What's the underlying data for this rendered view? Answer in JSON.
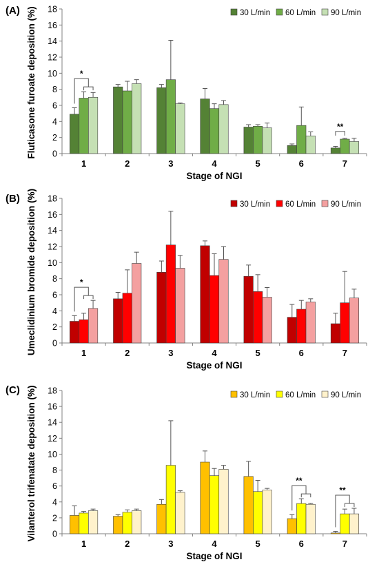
{
  "chart_data": [
    {
      "type": "bar",
      "panel_label": "(A)",
      "xlabel": "Stage of NGI",
      "ylabel": "Fluticasone furoate deposition (%)",
      "ylim": [
        0,
        18
      ],
      "yticks": [
        0,
        2,
        4,
        6,
        8,
        10,
        12,
        14,
        16,
        18
      ],
      "categories": [
        "1",
        "2",
        "3",
        "4",
        "5",
        "6",
        "7"
      ],
      "legend_position": "top-right",
      "grid": false,
      "series": [
        {
          "name": "30 L/min",
          "color": "#548235",
          "values": [
            4.9,
            8.3,
            8.2,
            6.8,
            3.3,
            1.0,
            0.7
          ],
          "errors": [
            0.8,
            0.3,
            0.4,
            1.3,
            0.3,
            0.2,
            0.2
          ]
        },
        {
          "name": "60 L/min",
          "color": "#70AD47",
          "values": [
            6.9,
            7.8,
            9.2,
            5.6,
            3.4,
            3.5,
            1.8
          ],
          "errors": [
            0.8,
            1.2,
            4.9,
            0.6,
            0.2,
            2.3,
            0.1
          ]
        },
        {
          "name": "90 L/min",
          "color": "#C5E0B4",
          "values": [
            7.0,
            8.7,
            6.2,
            6.1,
            3.2,
            2.2,
            1.5
          ],
          "errors": [
            0.6,
            0.5,
            0.1,
            0.5,
            0.6,
            0.5,
            0.4
          ]
        }
      ],
      "annotations": [
        {
          "text": "*",
          "category": "1",
          "span": "30–60 and 30–90 L/min"
        },
        {
          "text": "**",
          "category": "7",
          "span": "30–60 L/min"
        }
      ]
    },
    {
      "type": "bar",
      "panel_label": "(B)",
      "xlabel": "Stage of NGI",
      "ylabel": "Umeclidinium bromide deposition (%)",
      "ylim": [
        0,
        18
      ],
      "yticks": [
        0,
        2,
        4,
        6,
        8,
        10,
        12,
        14,
        16,
        18
      ],
      "categories": [
        "1",
        "2",
        "3",
        "4",
        "5",
        "6",
        "7"
      ],
      "legend_position": "top-right",
      "grid": false,
      "series": [
        {
          "name": "30 L/min",
          "color": "#C00000",
          "values": [
            2.7,
            5.5,
            8.8,
            12.1,
            8.3,
            3.2,
            2.4
          ],
          "errors": [
            0.7,
            0.8,
            1.4,
            0.6,
            1.4,
            1.6,
            1.3
          ]
        },
        {
          "name": "60 L/min",
          "color": "#FF0000",
          "values": [
            2.9,
            6.2,
            12.2,
            8.4,
            6.4,
            4.2,
            5.0
          ],
          "errors": [
            0.8,
            2.9,
            4.2,
            2.7,
            2.1,
            1.1,
            3.9
          ]
        },
        {
          "name": "90 L/min",
          "color": "#F4A0A0",
          "values": [
            4.3,
            9.9,
            9.3,
            10.4,
            5.7,
            5.1,
            5.6
          ],
          "errors": [
            1.0,
            1.4,
            1.6,
            1.6,
            1.2,
            0.4,
            1.1
          ]
        }
      ],
      "annotations": [
        {
          "text": "*",
          "category": "1",
          "span": "30–60 and 30–90 L/min"
        }
      ]
    },
    {
      "type": "bar",
      "panel_label": "(C)",
      "xlabel": "Stage of NGI",
      "ylabel": "Vilanterol trifenatate deposition (%)",
      "ylim": [
        0,
        18
      ],
      "yticks": [
        0,
        2,
        4,
        6,
        8,
        10,
        12,
        14,
        16,
        18
      ],
      "categories": [
        "1",
        "2",
        "3",
        "4",
        "5",
        "6",
        "7"
      ],
      "legend_position": "top-right",
      "grid": false,
      "series": [
        {
          "name": "30 L/min",
          "color": "#FFC000",
          "values": [
            2.3,
            2.2,
            3.7,
            9.0,
            7.2,
            1.9,
            0.1
          ],
          "errors": [
            1.2,
            0.2,
            0.6,
            1.4,
            1.9,
            0.5,
            0.2
          ]
        },
        {
          "name": "60 L/min",
          "color": "#FFFF00",
          "values": [
            2.6,
            2.7,
            8.6,
            7.3,
            5.3,
            3.8,
            2.5
          ],
          "errors": [
            0.2,
            0.3,
            5.6,
            0.9,
            1.4,
            0.6,
            0.6
          ]
        },
        {
          "name": "90 L/min",
          "color": "#FFF2CC",
          "values": [
            2.9,
            2.9,
            5.2,
            8.1,
            5.5,
            3.7,
            2.5
          ],
          "errors": [
            0.2,
            0.2,
            0.2,
            0.5,
            0.2,
            0.1,
            0.7
          ]
        }
      ],
      "annotations": [
        {
          "text": "**",
          "category": "6",
          "span": "30–60 and 30–90 L/min"
        },
        {
          "text": "**",
          "category": "7",
          "span": "30–60 and 30–90 L/min"
        }
      ]
    }
  ]
}
